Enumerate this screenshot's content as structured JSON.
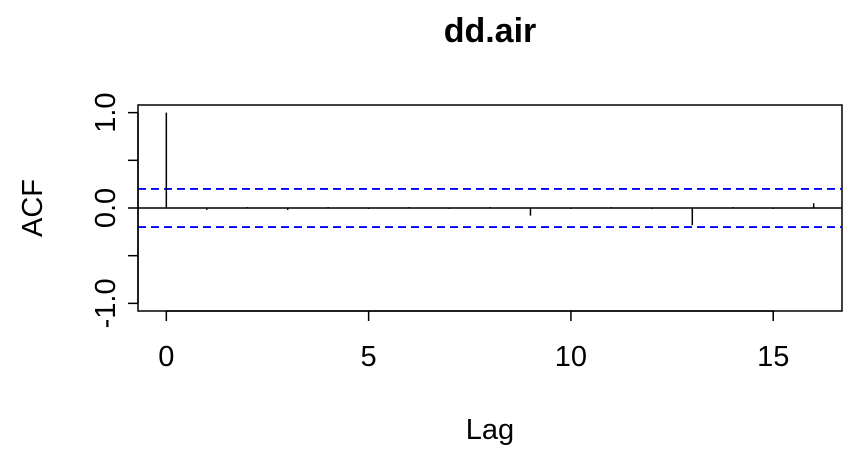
{
  "chart_data": {
    "type": "bar",
    "title": "dd.air",
    "xlabel": "Lag",
    "ylabel": "ACF",
    "xlim": [
      -0.7,
      16.7
    ],
    "ylim": [
      -1.08,
      1.08
    ],
    "x_ticks": [
      0,
      5,
      10,
      15
    ],
    "x_tick_labels": [
      "0",
      "5",
      "10",
      "15"
    ],
    "y_ticks": [
      -1,
      -0.5,
      0,
      0.5,
      1
    ],
    "y_tick_labels": [
      "-1.0",
      "",
      "0.0",
      "",
      "1.0"
    ],
    "confidence_bounds": [
      0.2,
      -0.2
    ],
    "bound_color": "#0000ff",
    "lags": [
      0,
      1,
      2,
      3,
      4,
      5,
      6,
      7,
      8,
      9,
      10,
      11,
      12,
      13,
      14,
      15,
      16
    ],
    "values": [
      1.0,
      -0.02,
      0.01,
      -0.02,
      0.01,
      -0.01,
      0.01,
      -0.01,
      0.01,
      -0.08,
      -0.01,
      0.01,
      -0.01,
      -0.18,
      0.01,
      -0.01,
      0.05
    ],
    "grid": false,
    "legend": "none"
  }
}
